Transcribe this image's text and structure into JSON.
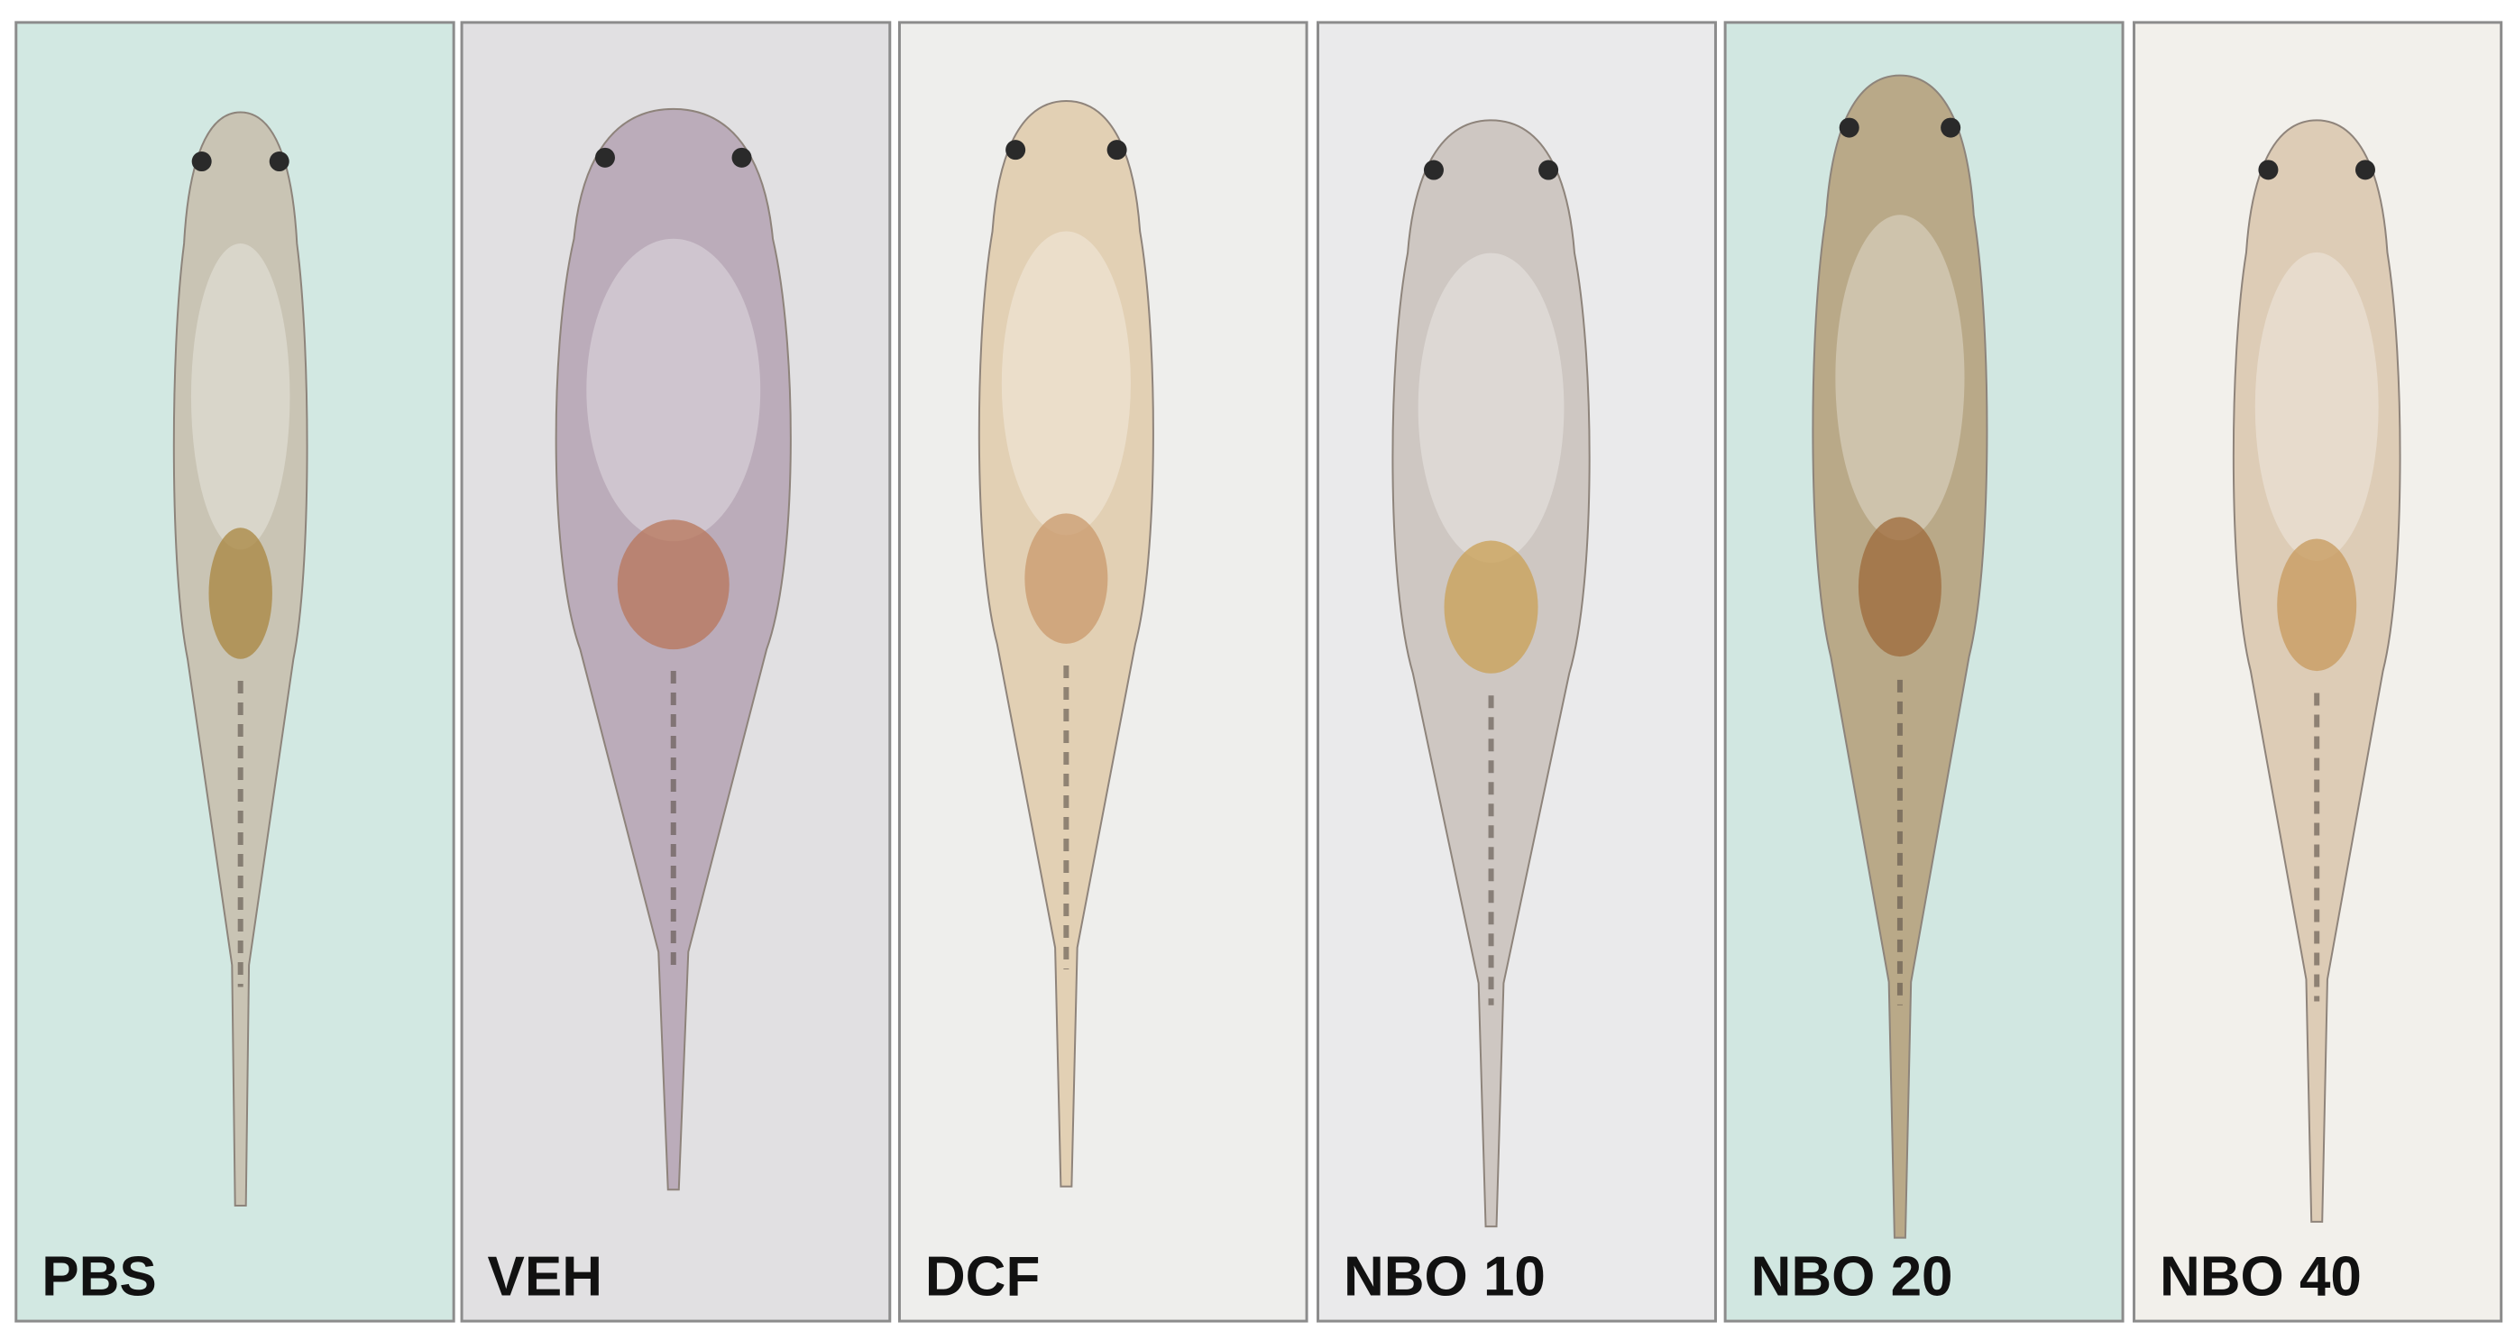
{
  "panels": [
    {
      "label": "PBS"
    },
    {
      "label": "VEH"
    },
    {
      "label": "DCF"
    },
    {
      "label": "NBO 10"
    },
    {
      "label": "NBO 20"
    },
    {
      "label": "NBO 40"
    }
  ]
}
